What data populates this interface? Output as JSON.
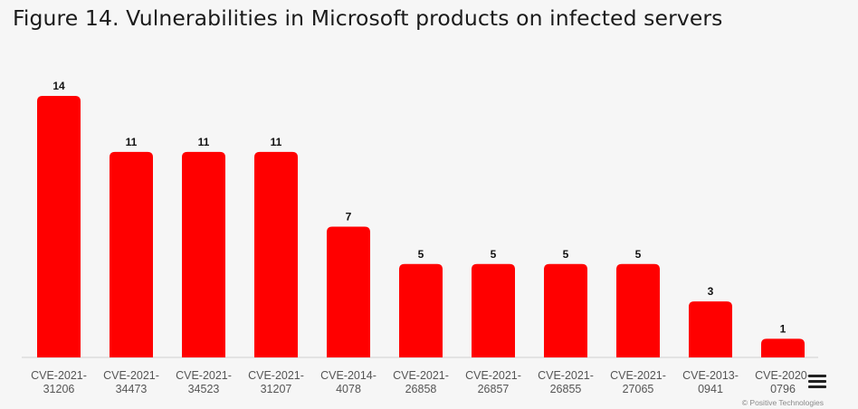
{
  "chart_data": {
    "type": "bar",
    "title": "Figure 14. Vulnerabilities in Microsoft products on infected servers",
    "categories": [
      [
        "CVE-2021-",
        "31206"
      ],
      [
        "CVE-2021-",
        "34473"
      ],
      [
        "CVE-2021-",
        "34523"
      ],
      [
        "CVE-2021-",
        "31207"
      ],
      [
        "CVE-2014-",
        "4078"
      ],
      [
        "CVE-2021-",
        "26858"
      ],
      [
        "CVE-2021-",
        "26857"
      ],
      [
        "CVE-2021-",
        "26855"
      ],
      [
        "CVE-2021-",
        "27065"
      ],
      [
        "CVE-2013-",
        "0941"
      ],
      [
        "CVE-2020-",
        "0796"
      ]
    ],
    "values": [
      14,
      11,
      11,
      11,
      7,
      5,
      5,
      5,
      5,
      3,
      1
    ],
    "xlabel": "",
    "ylabel": "",
    "ylim": [
      0,
      14
    ],
    "grid": false,
    "bar_color": "#ff0000"
  },
  "credit": "© Positive Technologies",
  "menu_icon": "menu-icon"
}
